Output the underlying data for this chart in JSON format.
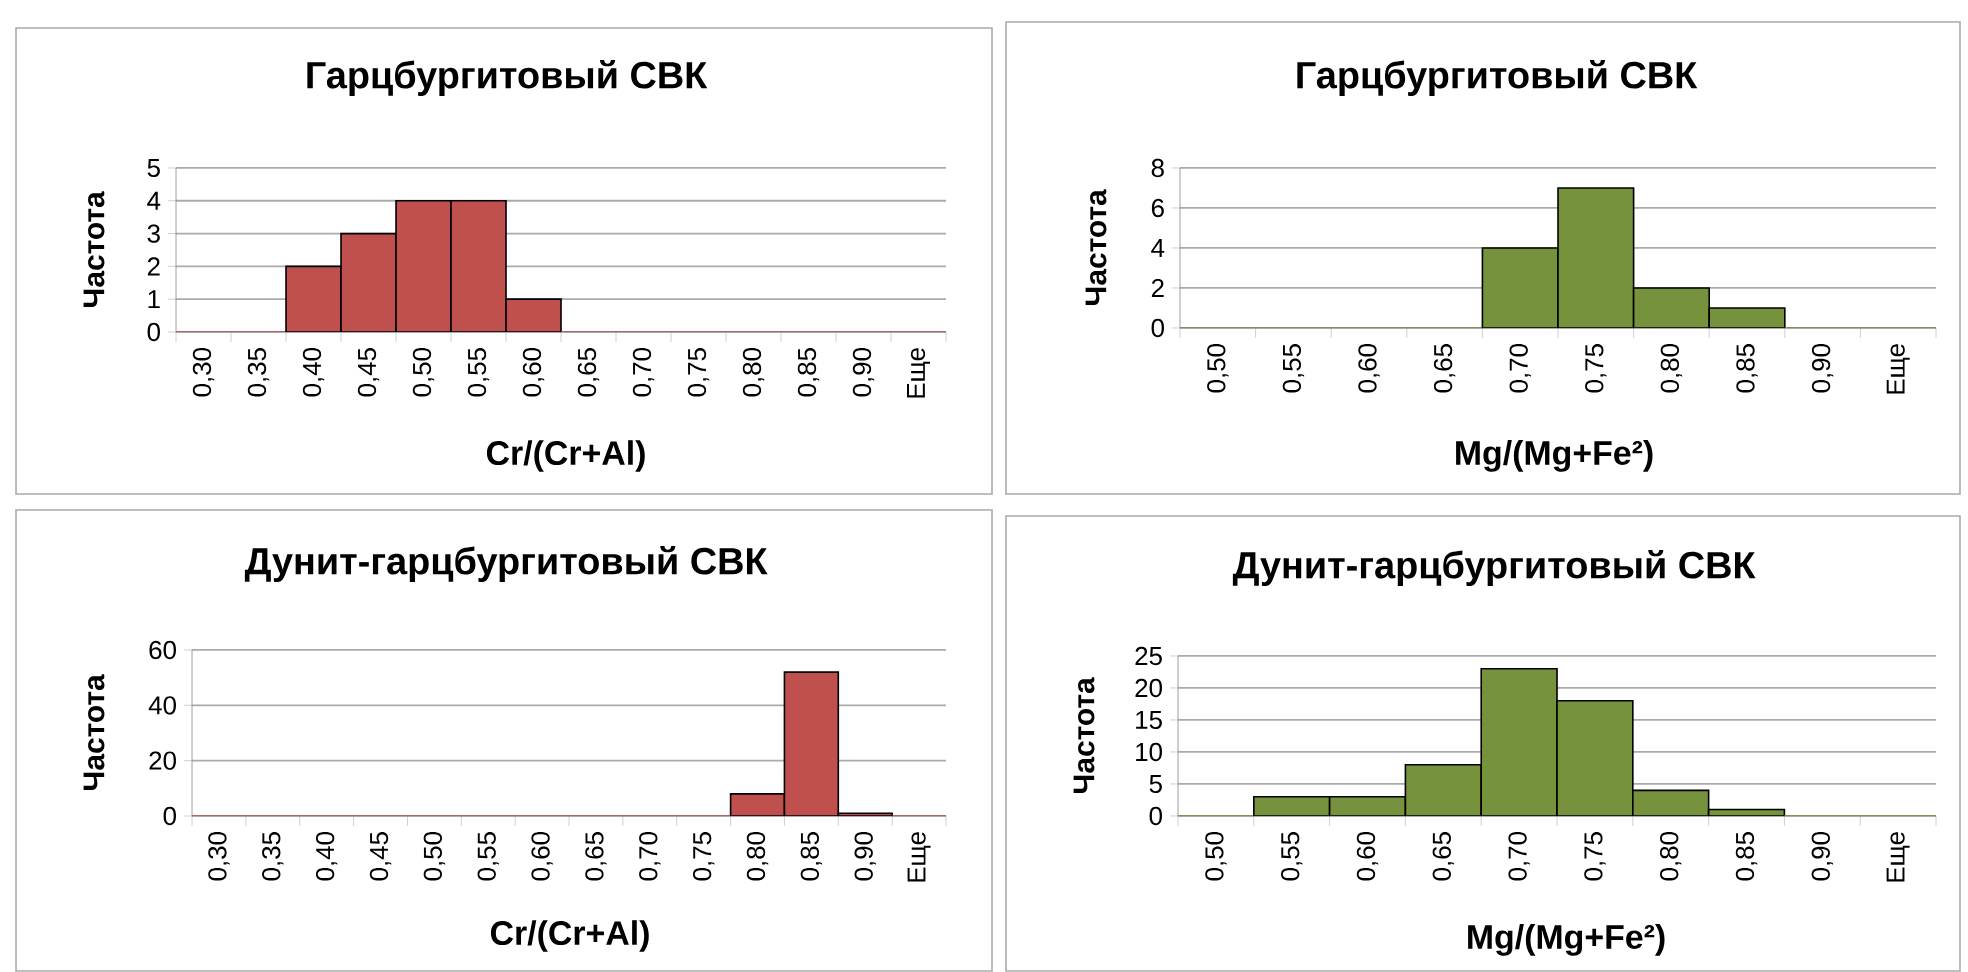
{
  "chart_data": [
    {
      "type": "bar",
      "title": "Гарцбургитовый СВК",
      "xlabel": "Cr/(Cr+Al)",
      "ylabel": "Частота",
      "categories": [
        "0,30",
        "0,35",
        "0,40",
        "0,45",
        "0,50",
        "0,55",
        "0,60",
        "0,65",
        "0,70",
        "0,75",
        "0,80",
        "0,85",
        "0,90",
        "Еще"
      ],
      "values": [
        0,
        0,
        2,
        3,
        4,
        4,
        1,
        0,
        0,
        0,
        0,
        0,
        0,
        0
      ],
      "color": "#c0504d",
      "ylim": [
        0,
        5
      ],
      "yticks": [
        0,
        1,
        2,
        3,
        4,
        5
      ],
      "grid": "y"
    },
    {
      "type": "bar",
      "title": "Гарцбургитовый СВК",
      "xlabel": "Mg/(Mg+Fe²)",
      "ylabel": "Частота",
      "categories": [
        "0,50",
        "0,55",
        "0,60",
        "0,65",
        "0,70",
        "0,75",
        "0,80",
        "0,85",
        "0,90",
        "Еще"
      ],
      "values": [
        0,
        0,
        0,
        0,
        4,
        7,
        2,
        1,
        0,
        0
      ],
      "color": "#76923c",
      "ylim": [
        0,
        8
      ],
      "yticks": [
        0,
        2,
        4,
        6,
        8
      ],
      "grid": "y"
    },
    {
      "type": "bar",
      "title": "Дунит-гарцбургитовый СВК",
      "xlabel": "Cr/(Cr+Al)",
      "ylabel": "Частота",
      "categories": [
        "0,30",
        "0,35",
        "0,40",
        "0,45",
        "0,50",
        "0,55",
        "0,60",
        "0,65",
        "0,70",
        "0,75",
        "0,80",
        "0,85",
        "0,90",
        "Еще"
      ],
      "values": [
        0,
        0,
        0,
        0,
        0,
        0,
        0,
        0,
        0,
        0,
        8,
        52,
        1,
        0
      ],
      "color": "#c0504d",
      "ylim": [
        0,
        60
      ],
      "yticks": [
        0,
        20,
        40,
        60
      ],
      "grid": "y"
    },
    {
      "type": "bar",
      "title": "Дунит-гарцбургитовый СВК",
      "xlabel": "Mg/(Mg+Fe²)",
      "ylabel": "Частота",
      "categories": [
        "0,50",
        "0,55",
        "0,60",
        "0,65",
        "0,70",
        "0,75",
        "0,80",
        "0,85",
        "0,90",
        "Еще"
      ],
      "values": [
        0,
        3,
        3,
        8,
        23,
        18,
        4,
        1,
        0,
        0
      ],
      "color": "#76923c",
      "ylim": [
        0,
        25
      ],
      "yticks": [
        0,
        5,
        10,
        15,
        20,
        25
      ],
      "grid": "y"
    }
  ]
}
